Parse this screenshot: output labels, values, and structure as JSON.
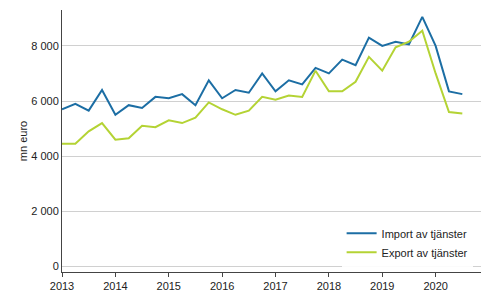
{
  "chart_data": {
    "type": "line",
    "y_label": "mn euro",
    "x": [
      2013,
      2013.25,
      2013.5,
      2013.75,
      2014,
      2014.25,
      2014.5,
      2014.75,
      2015,
      2015.25,
      2015.5,
      2015.75,
      2016,
      2016.25,
      2016.5,
      2016.75,
      2017,
      2017.25,
      2017.5,
      2017.75,
      2018,
      2018.25,
      2018.5,
      2018.75,
      2019,
      2019.25,
      2019.5,
      2019.75,
      2020,
      2020.25,
      2020.5
    ],
    "series": [
      {
        "name": "Import av tjänster",
        "color": "#1c6ea4",
        "values": [
          5700,
          5900,
          5650,
          6400,
          5500,
          5850,
          5750,
          6150,
          6100,
          6250,
          5850,
          6750,
          6100,
          6400,
          6300,
          7000,
          6350,
          6750,
          6600,
          7200,
          7000,
          7500,
          7300,
          8300,
          8000,
          8150,
          8050,
          9050,
          8000,
          6350,
          6250
        ]
      },
      {
        "name": "Export av tjänster",
        "color": "#b4d334",
        "values": [
          4450,
          4450,
          4900,
          5200,
          4600,
          4650,
          5100,
          5050,
          5300,
          5200,
          5400,
          5950,
          5700,
          5500,
          5650,
          6150,
          6050,
          6200,
          6150,
          7100,
          6350,
          6350,
          6700,
          7600,
          7100,
          7950,
          8150,
          8550,
          7000,
          5600,
          5550
        ]
      }
    ],
    "xlim": [
      2013,
      2020.85
    ],
    "xticks": [
      2013,
      2014,
      2015,
      2016,
      2017,
      2018,
      2019,
      2020
    ],
    "ylim": [
      -200,
      9300
    ],
    "yticks": [
      0,
      {
        "value": 2000,
        "label": "2 000"
      },
      {
        "value": 4000,
        "label": "4 000"
      },
      {
        "value": 6000,
        "label": "6 000"
      },
      {
        "value": 8000,
        "label": "8 000"
      }
    ],
    "grid": true,
    "legend": "lower right"
  }
}
